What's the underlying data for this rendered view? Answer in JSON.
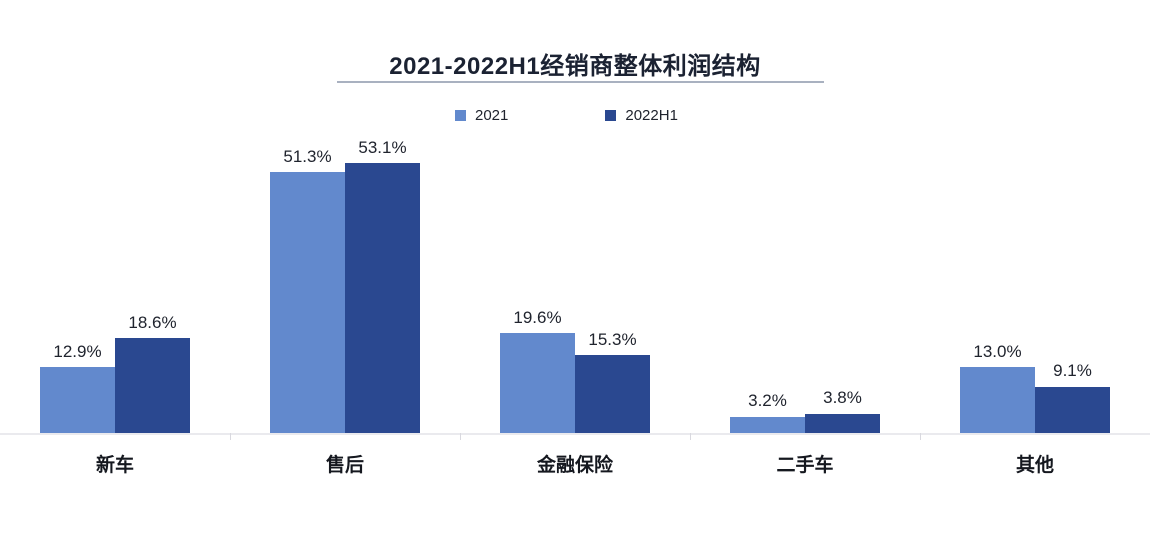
{
  "title": "2021-2022H1经销商整体利润结构",
  "colors": {
    "series_2021": "#6289CD",
    "series_2022h1": "#2A4890",
    "title_text": "#1B2232",
    "title_underline": "#A9B1C0",
    "axis_line": "#EAEAEE",
    "label_text": "#20242E"
  },
  "legend": [
    {
      "label": "2021",
      "color": "#6289CD"
    },
    {
      "label": "2022H1",
      "color": "#2A4890"
    }
  ],
  "chart_data": {
    "type": "bar",
    "title": "2021-2022H1经销商整体利润结构",
    "categories": [
      "新车",
      "售后",
      "金融保险",
      "二手车",
      "其他"
    ],
    "series": [
      {
        "name": "2021",
        "color": "#6289CD",
        "values": [
          12.9,
          51.3,
          19.6,
          3.2,
          13.0
        ],
        "labels": [
          "12.9%",
          "51.3%",
          "19.6%",
          "3.2%",
          "13.0%"
        ]
      },
      {
        "name": "2022H1",
        "color": "#2A4890",
        "values": [
          18.6,
          53.1,
          15.3,
          3.8,
          9.1
        ],
        "labels": [
          "18.6%",
          "53.1%",
          "15.3%",
          "3.8%",
          "9.1%"
        ]
      }
    ],
    "xlabel": "",
    "ylabel": "",
    "ylim": [
      0,
      53.1
    ],
    "value_suffix": "%",
    "grid": false,
    "data_labels": true,
    "legend_position": "top-center"
  }
}
